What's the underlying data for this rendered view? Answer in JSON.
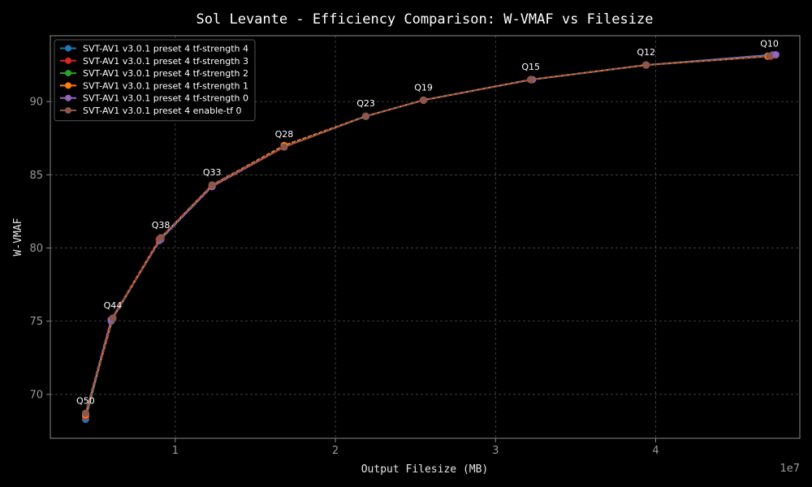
{
  "chart_data": {
    "type": "line",
    "title": "Sol Levante - Efficiency Comparison: W-VMAF vs Filesize",
    "xlabel": "Output Filesize (MB)",
    "ylabel": "W-VMAF",
    "x_exponent_label": "1e7",
    "xlim": [
      2200000,
      49000000
    ],
    "ylim": [
      67.0,
      94.5
    ],
    "x_ticks": [
      {
        "value": 10000000,
        "label": "1"
      },
      {
        "value": 20000000,
        "label": "2"
      },
      {
        "value": 30000000,
        "label": "3"
      },
      {
        "value": 40000000,
        "label": "4"
      }
    ],
    "y_ticks": [
      {
        "value": 70,
        "label": "70"
      },
      {
        "value": 75,
        "label": "75"
      },
      {
        "value": 80,
        "label": "80"
      },
      {
        "value": 85,
        "label": "85"
      },
      {
        "value": 90,
        "label": "90"
      }
    ],
    "grid": true,
    "legend_position": "top-left",
    "series": [
      {
        "name": "SVT-AV1 v3.0.1 preset 4 tf-strength 4",
        "color": "#1f77b4",
        "x": [
          4400000,
          6000000,
          9000000,
          12300000,
          16800000,
          21900000,
          25500000,
          32200000,
          39400000,
          47300000
        ],
        "y": [
          68.3,
          75.0,
          80.5,
          84.2,
          86.9,
          89.0,
          90.1,
          91.5,
          92.5,
          93.2
        ]
      },
      {
        "name": "SVT-AV1 v3.0.1 preset 4 tf-strength 3",
        "color": "#d62728",
        "x": [
          4400000,
          6000000,
          9000000,
          12300000,
          16800000,
          21900000,
          25500000,
          32200000,
          39400000,
          47200000
        ],
        "y": [
          68.5,
          75.1,
          80.6,
          84.2,
          86.9,
          89.0,
          90.1,
          91.5,
          92.5,
          93.1
        ]
      },
      {
        "name": "SVT-AV1 v3.0.1 preset 4 tf-strength 2",
        "color": "#2ca02c",
        "x": [
          4400000,
          6100000,
          9100000,
          12300000,
          16800000,
          21900000,
          25500000,
          32200000,
          39400000,
          47000000
        ],
        "y": [
          68.6,
          75.2,
          80.7,
          84.3,
          87.0,
          89.0,
          90.1,
          91.5,
          92.5,
          93.1
        ]
      },
      {
        "name": "SVT-AV1 v3.0.1 preset 4 tf-strength 1",
        "color": "#ff7f0e",
        "x": [
          4400000,
          6100000,
          9100000,
          12300000,
          16800000,
          21900000,
          25500000,
          32200000,
          39400000,
          47000000
        ],
        "y": [
          68.6,
          75.2,
          80.7,
          84.3,
          87.0,
          89.0,
          90.1,
          91.5,
          92.5,
          93.1
        ]
      },
      {
        "name": "SVT-AV1 v3.0.1 preset 4 tf-strength 0",
        "color": "#9467bd",
        "x": [
          4400000,
          6000000,
          9100000,
          12300000,
          16800000,
          21900000,
          25500000,
          32300000,
          39400000,
          47500000
        ],
        "y": [
          68.7,
          75.1,
          80.6,
          84.2,
          86.9,
          89.0,
          90.1,
          91.5,
          92.5,
          93.2
        ]
      },
      {
        "name": "SVT-AV1 v3.0.1 preset 4 enable-tf 0",
        "color": "#8c564b",
        "x": [
          4400000,
          6100000,
          9100000,
          12300000,
          16800000,
          21900000,
          25500000,
          32200000,
          39400000,
          47100000
        ],
        "y": [
          68.7,
          75.2,
          80.7,
          84.3,
          86.9,
          89.0,
          90.1,
          91.5,
          92.5,
          93.1
        ]
      }
    ],
    "annotations": [
      {
        "text": "Q50",
        "x": 4400000,
        "y": 68.7
      },
      {
        "text": "Q44",
        "x": 6100000,
        "y": 75.2
      },
      {
        "text": "Q38",
        "x": 9100000,
        "y": 80.7
      },
      {
        "text": "Q33",
        "x": 12300000,
        "y": 84.3
      },
      {
        "text": "Q28",
        "x": 16800000,
        "y": 86.9
      },
      {
        "text": "Q23",
        "x": 21900000,
        "y": 89.0
      },
      {
        "text": "Q19",
        "x": 25500000,
        "y": 90.1
      },
      {
        "text": "Q15",
        "x": 32200000,
        "y": 91.5
      },
      {
        "text": "Q12",
        "x": 39400000,
        "y": 92.5
      },
      {
        "text": "Q10",
        "x": 47100000,
        "y": 93.1
      }
    ]
  }
}
